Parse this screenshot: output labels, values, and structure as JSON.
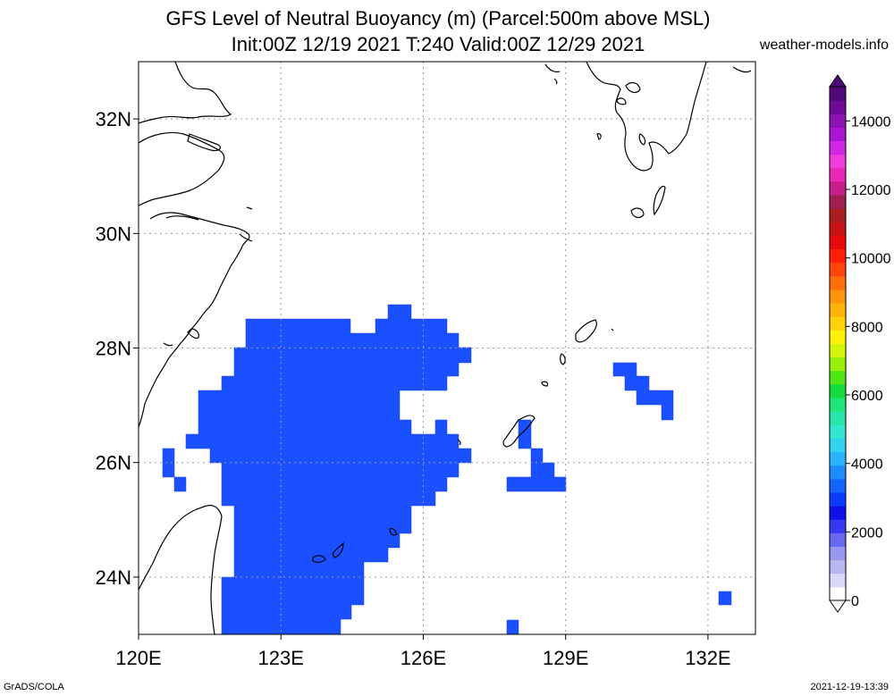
{
  "title_line1": "GFS Level of Neutral Buoyancy (m) (Parcel:500m above MSL)",
  "title_line2": "Init:00Z 12/19 2021 T:240 Valid:00Z 12/29 2021",
  "website": "weather-models.info",
  "credit": "GrADS/COLA",
  "timestamp": "2021-12-19-13:39",
  "map": {
    "lon_range": [
      120,
      133
    ],
    "lat_range": [
      23,
      33
    ],
    "lon_ticks": [
      {
        "value": 120,
        "label": "120E"
      },
      {
        "value": 123,
        "label": "123E"
      },
      {
        "value": 126,
        "label": "126E"
      },
      {
        "value": 129,
        "label": "129E"
      },
      {
        "value": 132,
        "label": "132E"
      }
    ],
    "lat_ticks": [
      {
        "value": 24,
        "label": "24N"
      },
      {
        "value": 26,
        "label": "26N"
      },
      {
        "value": 28,
        "label": "28N"
      },
      {
        "value": 30,
        "label": "30N"
      },
      {
        "value": 32,
        "label": "32N"
      }
    ],
    "grid": "dotted",
    "field_color": "#1a50ff",
    "field_edge_color": "#1a3cf0"
  },
  "colorbar": {
    "range": [
      0,
      15000
    ],
    "labels": [
      "0",
      "2000",
      "4000",
      "6000",
      "8000",
      "10000",
      "12000",
      "14000"
    ],
    "label_values": [
      0,
      2000,
      4000,
      6000,
      8000,
      10000,
      12000,
      14000
    ],
    "colors": [
      "#ffffff",
      "#d8d8f8",
      "#b8b8f0",
      "#9898f0",
      "#6868f0",
      "#3838f0",
      "#1010e8",
      "#0a3cff",
      "#1464ff",
      "#1e8cff",
      "#28b4ff",
      "#32d2f0",
      "#32e6d2",
      "#28e6aa",
      "#1ee678",
      "#14dc3c",
      "#50e614",
      "#96f00a",
      "#d2f50a",
      "#fff00a",
      "#ffd20a",
      "#ffb40a",
      "#ff960a",
      "#ff6e0a",
      "#ff460a",
      "#ff1e0a",
      "#e60a0a",
      "#c81414",
      "#aa1e1e",
      "#a01e50",
      "#c81e8c",
      "#e628b4",
      "#f03cdc",
      "#d228e6",
      "#aa14d2",
      "#8c14b4",
      "#6e0a96",
      "#500a78"
    ]
  }
}
